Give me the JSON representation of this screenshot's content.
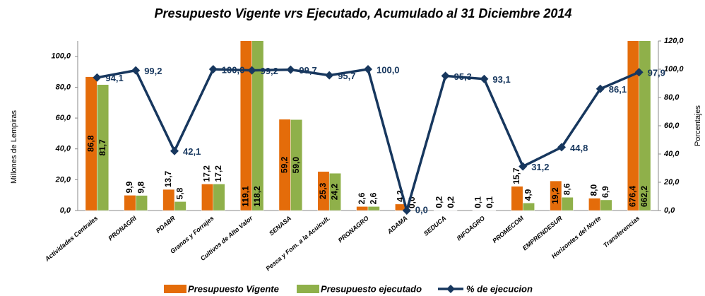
{
  "chart_data": {
    "type": "bar",
    "title": "Presupuesto  Vigente vrs Ejecutado, Acumulado al 31 Diciembre 2014",
    "y_label": "Millones de Lempiras",
    "y2_label": "Porcentajes",
    "categories": [
      "Actividades Centrales",
      "PRONAGRI",
      "PDABR",
      "Granos y Forrajes",
      "Cultivos de Alto Valor",
      "SENASA",
      "Pesca y Fom.  a la Acuicult.",
      "PRONAGRO",
      "ADAMA",
      "SEDUCA",
      "INFOAGRO",
      "PROMECOM",
      "EMPRENDESUR",
      "Horizontes del Norte",
      "Transferencias"
    ],
    "series": [
      {
        "name": "Presupuesto Vigente",
        "color": "#e46c0a",
        "values": [
          86.8,
          9.9,
          13.7,
          17.2,
          119.1,
          59.2,
          25.3,
          2.6,
          4.2,
          0.2,
          0.1,
          15.7,
          19.2,
          8.0,
          676.4
        ],
        "value_labels": [
          "86,8",
          "9,9",
          "13,7",
          "17,2",
          "119,1",
          "59,2",
          "25,3",
          "2,6",
          "4,2",
          "0,2",
          "0,1",
          "15,7",
          "19,2",
          "8,0",
          "676,4"
        ]
      },
      {
        "name": "Presupuesto ejecutado",
        "color": "#8fb04a",
        "values": [
          81.7,
          9.8,
          5.8,
          17.2,
          118.2,
          59.0,
          24.2,
          2.6,
          0.0,
          0.2,
          0.1,
          4.9,
          8.6,
          6.9,
          662.2
        ],
        "value_labels": [
          "81,7",
          "9,8",
          "5,8",
          "17,2",
          "118,2",
          "59,0",
          "24,2",
          "2,6",
          "0,0",
          "0,2",
          "0,1",
          "4,9",
          "8,6",
          "6,9",
          "662,2"
        ]
      },
      {
        "name": "% de ejecucion",
        "type": "line",
        "axis": "y2",
        "color": "#17375e",
        "values": [
          94.1,
          99.2,
          42.1,
          100.0,
          99.2,
          99.7,
          95.7,
          100.0,
          0.0,
          95.3,
          93.1,
          31.2,
          44.8,
          86.1,
          97.9
        ],
        "value_labels": [
          "94,1",
          "99,2",
          "42,1",
          "100,0",
          "99,2",
          "99,7",
          "95,7",
          "100,0",
          "0,0",
          "95,3",
          "93,1",
          "31,2",
          "44,8",
          "86,1",
          "97,9"
        ]
      }
    ],
    "ylim": [
      0,
      110
    ],
    "yticks": [
      {
        "value": 0,
        "label": "0,0"
      },
      {
        "value": 20,
        "label": "20,0"
      },
      {
        "value": 40,
        "label": "40,0"
      },
      {
        "value": 60,
        "label": "60,0"
      },
      {
        "value": 80,
        "label": "80,0"
      },
      {
        "value": 100,
        "label": "100,0"
      }
    ],
    "y2lim": [
      0,
      120
    ],
    "y2ticks": [
      {
        "value": 0,
        "label": "0,0"
      },
      {
        "value": 20,
        "label": "20,0"
      },
      {
        "value": 40,
        "label": "40,0"
      },
      {
        "value": 60,
        "label": "60,0"
      },
      {
        "value": 80,
        "label": "80,0"
      },
      {
        "value": 100,
        "label": "100,0"
      },
      {
        "value": 120,
        "label": "120,0"
      }
    ],
    "legend": "bottom"
  }
}
